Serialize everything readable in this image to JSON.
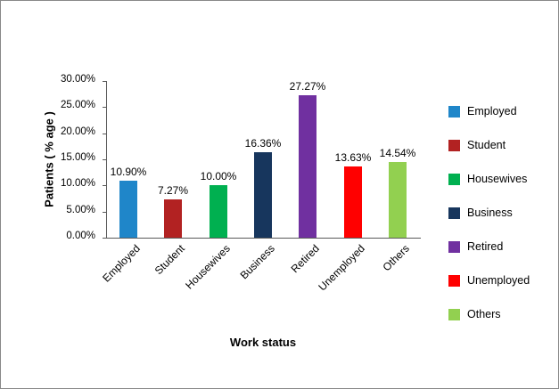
{
  "chart_data": {
    "type": "bar",
    "title": "",
    "xlabel": "Work status",
    "ylabel": "Patients ( % age )",
    "categories": [
      "Employed",
      "Student",
      "Housewives",
      "Business",
      "Retired",
      "Unemployed",
      "Others"
    ],
    "values": [
      10.9,
      7.27,
      10.0,
      16.36,
      27.27,
      13.63,
      14.54
    ],
    "labels": [
      "10.90%",
      "7.27%",
      "10.00%",
      "16.36%",
      "27.27%",
      "13.63%",
      "14.54%"
    ],
    "colors": [
      "#1F86C9",
      "#B22222",
      "#00B050",
      "#17365D",
      "#7030A0",
      "#FF0000",
      "#92D050"
    ],
    "ylim": [
      0,
      30
    ],
    "ytick_step": 5,
    "yticks": [
      "0.00%",
      "5.00%",
      "10.00%",
      "15.00%",
      "20.00%",
      "25.00%",
      "30.00%"
    ],
    "legend": [
      "Employed",
      "Student",
      "Housewives",
      "Business",
      "Retired",
      "Unemployed",
      "Others"
    ],
    "legend_position": "right",
    "grid": false
  }
}
